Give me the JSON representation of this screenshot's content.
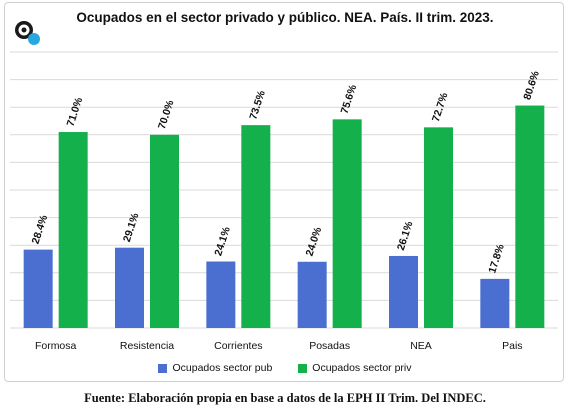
{
  "chart_data": {
    "type": "bar",
    "title": "Ocupados en el sector privado y público. NEA. País. II trim. 2023.",
    "categories": [
      "Formosa",
      "Resistencia",
      "Corrientes",
      "Posadas",
      "NEA",
      "Pais"
    ],
    "series": [
      {
        "name": "Ocupados sector pub",
        "values": [
          28.4,
          29.1,
          24.1,
          24.0,
          26.1,
          17.8
        ],
        "labels": [
          "28.4%",
          "29.1%",
          "24.1%",
          "24.0%",
          "26.1%",
          "17.8%"
        ],
        "color": "#4a6fd1"
      },
      {
        "name": "Ocupados sector priv",
        "values": [
          71.0,
          70.0,
          73.5,
          75.6,
          72.7,
          80.6
        ],
        "labels": [
          "71.0%",
          "70.0%",
          "73.5%",
          "75.6%",
          "72.7%",
          "80.6%"
        ],
        "color": "#13b04b"
      }
    ],
    "ylim": [
      0,
      100
    ],
    "grid": true,
    "legend": "bottom",
    "xlabel": "",
    "ylabel": ""
  },
  "source_note": "Fuente: Elaboración propia en base a datos de la EPH II Trim. Del INDEC.",
  "logo_icon": "target-logo-icon"
}
